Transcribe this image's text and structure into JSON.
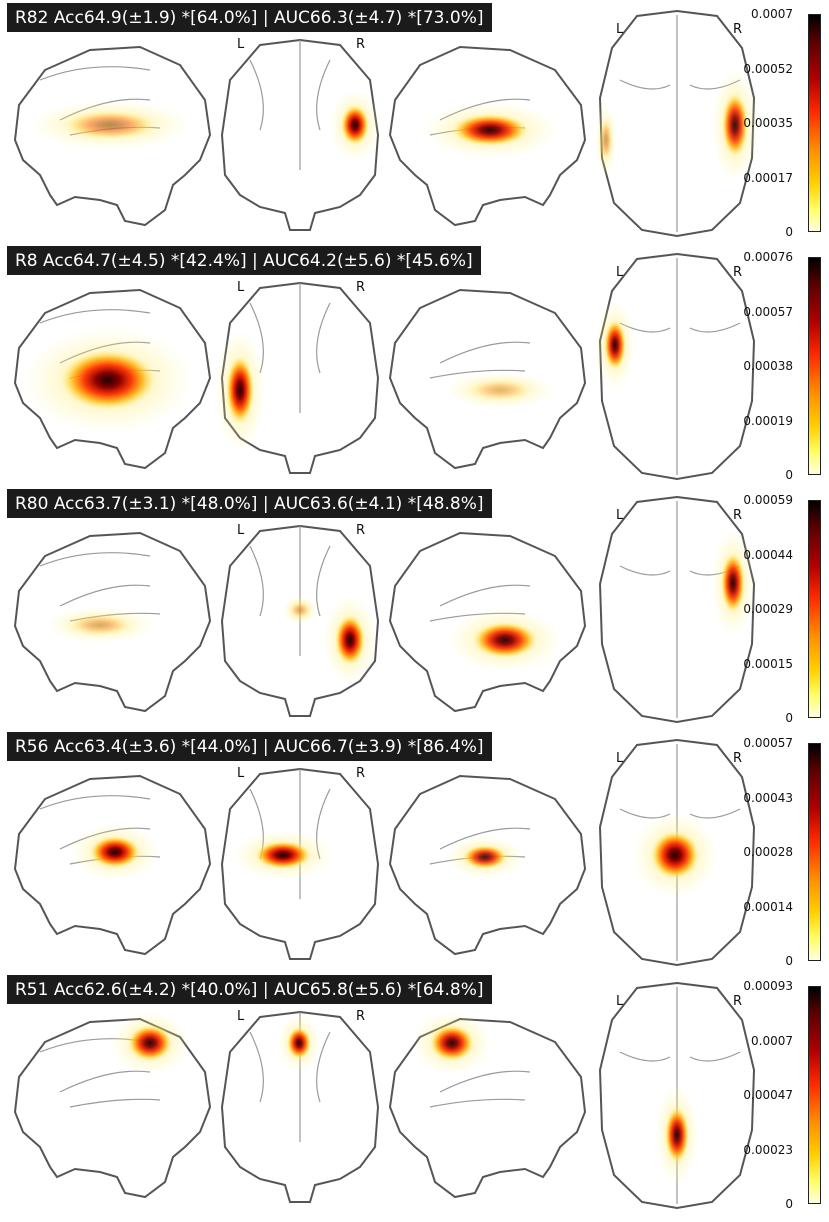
{
  "hemisphere_labels": {
    "left": "L",
    "right": "R"
  },
  "panels": [
    {
      "title": "R82  Acc64.9(±1.9) *[64.0%] | AUC66.3(±4.7) *[73.0%]",
      "colorbar_ticks": [
        "0.0007",
        "0.00052",
        "0.00035",
        "0.00017",
        "0"
      ]
    },
    {
      "title": "R8  Acc64.7(±4.5) *[42.4%] | AUC64.2(±5.6) *[45.6%]",
      "colorbar_ticks": [
        "0.00076",
        "0.00057",
        "0.00038",
        "0.00019",
        "0"
      ]
    },
    {
      "title": "R80  Acc63.7(±3.1) *[48.0%] | AUC63.6(±4.1) *[48.8%]",
      "colorbar_ticks": [
        "0.00059",
        "0.00044",
        "0.00029",
        "0.00015",
        "0"
      ]
    },
    {
      "title": "R56  Acc63.4(±3.6) *[44.0%] | AUC66.7(±3.9) *[86.4%]",
      "colorbar_ticks": [
        "0.00057",
        "0.00043",
        "0.00028",
        "0.00014",
        "0"
      ]
    },
    {
      "title": "R51  Acc62.6(±4.2) *[40.0%] | AUC65.8(±5.6) *[64.8%]",
      "colorbar_ticks": [
        "0.00093",
        "0.0007",
        "0.00047",
        "0.00023",
        "0"
      ]
    }
  ],
  "colors": {
    "title_background": "#1b1b1b",
    "title_text": "#ffffff",
    "brain_outline": "#555555",
    "colormap": "cold_hot (yellow to black)"
  }
}
